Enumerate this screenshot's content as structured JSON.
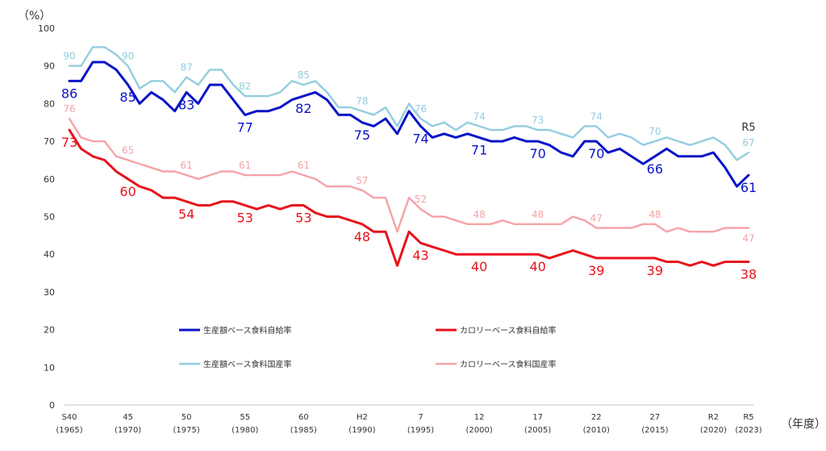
{
  "chart_data": {
    "type": "line",
    "title": "",
    "ylabel": "（%）",
    "xlabel": "（年度）",
    "ylim": [
      0,
      100
    ],
    "y_ticks": [
      0,
      10,
      20,
      30,
      40,
      50,
      60,
      70,
      80,
      90,
      100
    ],
    "grid": false,
    "legend_position": "inside-bottom-center",
    "x_range": [
      1965,
      2023
    ],
    "x_ticks": [
      {
        "year": 1965,
        "era": "S40",
        "western": "(1965)"
      },
      {
        "year": 1970,
        "era": "45",
        "western": "(1970)"
      },
      {
        "year": 1975,
        "era": "50",
        "western": "(1975)"
      },
      {
        "year": 1980,
        "era": "55",
        "western": "(1980)"
      },
      {
        "year": 1985,
        "era": "60",
        "western": "(1985)"
      },
      {
        "year": 1990,
        "era": "H2",
        "western": "(1990)"
      },
      {
        "year": 1995,
        "era": "7",
        "western": "(1995)"
      },
      {
        "year": 2000,
        "era": "12",
        "western": "(2000)"
      },
      {
        "year": 2005,
        "era": "17",
        "western": "(2005)"
      },
      {
        "year": 2010,
        "era": "22",
        "western": "(2010)"
      },
      {
        "year": 2015,
        "era": "27",
        "western": "(2015)"
      },
      {
        "year": 2020,
        "era": "R2",
        "western": "(2020)"
      },
      {
        "year": 2023,
        "era": "R5",
        "western": "(2023)"
      }
    ],
    "end_label": "R5",
    "series": [
      {
        "name": "生産額ベース食料国産率",
        "color": "#93cde0",
        "width": 2.4,
        "x": [
          1965,
          1966,
          1967,
          1968,
          1969,
          1970,
          1971,
          1972,
          1973,
          1974,
          1975,
          1976,
          1977,
          1978,
          1979,
          1980,
          1981,
          1982,
          1983,
          1984,
          1985,
          1986,
          1987,
          1988,
          1989,
          1990,
          1991,
          1992,
          1993,
          1994,
          1995,
          1996,
          1997,
          1998,
          1999,
          2000,
          2001,
          2002,
          2003,
          2004,
          2005,
          2006,
          2007,
          2008,
          2009,
          2010,
          2011,
          2012,
          2013,
          2014,
          2015,
          2016,
          2017,
          2018,
          2019,
          2020,
          2021,
          2022,
          2023
        ],
        "values": [
          90,
          90,
          95,
          95,
          93,
          90,
          84,
          86,
          86,
          83,
          87,
          85,
          89,
          89,
          85,
          82,
          82,
          82,
          83,
          86,
          85,
          86,
          83,
          79,
          79,
          78,
          77,
          79,
          74,
          80,
          76,
          74,
          75,
          73,
          75,
          74,
          73,
          73,
          74,
          74,
          73,
          73,
          72,
          71,
          74,
          74,
          71,
          72,
          71,
          69,
          70,
          71,
          70,
          69,
          70,
          71,
          69,
          65,
          67
        ],
        "labels": [
          {
            "year": 1965,
            "text": "90",
            "pos": "above"
          },
          {
            "year": 1970,
            "text": "90",
            "pos": "above"
          },
          {
            "year": 1975,
            "text": "87",
            "pos": "above"
          },
          {
            "year": 1980,
            "text": "82",
            "pos": "above"
          },
          {
            "year": 1985,
            "text": "85",
            "pos": "above"
          },
          {
            "year": 1990,
            "text": "78",
            "pos": "above"
          },
          {
            "year": 1995,
            "text": "76",
            "pos": "above"
          },
          {
            "year": 2000,
            "text": "74",
            "pos": "above"
          },
          {
            "year": 2005,
            "text": "73",
            "pos": "above"
          },
          {
            "year": 2010,
            "text": "74",
            "pos": "above"
          },
          {
            "year": 2015,
            "text": "70",
            "pos": "above"
          },
          {
            "year": 2023,
            "text": "67",
            "pos": "above"
          }
        ]
      },
      {
        "name": "生産額ベース食料自給率",
        "color": "#0a14c8",
        "width": 3,
        "x": [
          1965,
          1966,
          1967,
          1968,
          1969,
          1970,
          1971,
          1972,
          1973,
          1974,
          1975,
          1976,
          1977,
          1978,
          1979,
          1980,
          1981,
          1982,
          1983,
          1984,
          1985,
          1986,
          1987,
          1988,
          1989,
          1990,
          1991,
          1992,
          1993,
          1994,
          1995,
          1996,
          1997,
          1998,
          1999,
          2000,
          2001,
          2002,
          2003,
          2004,
          2005,
          2006,
          2007,
          2008,
          2009,
          2010,
          2011,
          2012,
          2013,
          2014,
          2015,
          2016,
          2017,
          2018,
          2019,
          2020,
          2021,
          2022,
          2023
        ],
        "values": [
          86,
          86,
          91,
          91,
          89,
          85,
          80,
          83,
          81,
          78,
          83,
          80,
          85,
          85,
          81,
          77,
          78,
          78,
          79,
          81,
          82,
          83,
          81,
          77,
          77,
          75,
          74,
          76,
          72,
          78,
          74,
          71,
          72,
          71,
          72,
          71,
          70,
          70,
          71,
          70,
          70,
          69,
          67,
          66,
          70,
          70,
          67,
          68,
          66,
          64,
          66,
          68,
          66,
          66,
          66,
          67,
          63,
          58,
          61
        ],
        "labels": [
          {
            "year": 1965,
            "text": "86",
            "pos": "below"
          },
          {
            "year": 1970,
            "text": "85",
            "pos": "below"
          },
          {
            "year": 1975,
            "text": "83",
            "pos": "below"
          },
          {
            "year": 1980,
            "text": "77",
            "pos": "below"
          },
          {
            "year": 1985,
            "text": "82",
            "pos": "below"
          },
          {
            "year": 1990,
            "text": "75",
            "pos": "below"
          },
          {
            "year": 1995,
            "text": "74",
            "pos": "below"
          },
          {
            "year": 2000,
            "text": "71",
            "pos": "below"
          },
          {
            "year": 2005,
            "text": "70",
            "pos": "below"
          },
          {
            "year": 2010,
            "text": "70",
            "pos": "below"
          },
          {
            "year": 2015,
            "text": "66",
            "pos": "below"
          },
          {
            "year": 2023,
            "text": "61",
            "pos": "below"
          }
        ]
      },
      {
        "name": "カロリーベース食料国産率",
        "color": "#f5a3a8",
        "width": 2.4,
        "x": [
          1965,
          1966,
          1967,
          1968,
          1969,
          1970,
          1971,
          1972,
          1973,
          1974,
          1975,
          1976,
          1977,
          1978,
          1979,
          1980,
          1981,
          1982,
          1983,
          1984,
          1985,
          1986,
          1987,
          1988,
          1989,
          1990,
          1991,
          1992,
          1993,
          1994,
          1995,
          1996,
          1997,
          1998,
          1999,
          2000,
          2001,
          2002,
          2003,
          2004,
          2005,
          2006,
          2007,
          2008,
          2009,
          2010,
          2011,
          2012,
          2013,
          2014,
          2015,
          2016,
          2017,
          2018,
          2019,
          2020,
          2021,
          2022,
          2023
        ],
        "values": [
          76,
          71,
          70,
          70,
          66,
          65,
          64,
          63,
          62,
          62,
          61,
          60,
          61,
          62,
          62,
          61,
          61,
          61,
          61,
          62,
          61,
          60,
          58,
          58,
          58,
          57,
          55,
          55,
          46,
          55,
          52,
          50,
          50,
          49,
          48,
          48,
          48,
          49,
          48,
          48,
          48,
          48,
          48,
          50,
          49,
          47,
          47,
          47,
          47,
          48,
          48,
          46,
          47,
          46,
          46,
          46,
          47,
          47,
          47
        ],
        "labels": [
          {
            "year": 1965,
            "text": "76",
            "pos": "above"
          },
          {
            "year": 1970,
            "text": "65",
            "pos": "above"
          },
          {
            "year": 1975,
            "text": "61",
            "pos": "above"
          },
          {
            "year": 1980,
            "text": "61",
            "pos": "above"
          },
          {
            "year": 1985,
            "text": "61",
            "pos": "above"
          },
          {
            "year": 1990,
            "text": "57",
            "pos": "above"
          },
          {
            "year": 1995,
            "text": "52",
            "pos": "above"
          },
          {
            "year": 2000,
            "text": "48",
            "pos": "above"
          },
          {
            "year": 2005,
            "text": "48",
            "pos": "above"
          },
          {
            "year": 2010,
            "text": "47",
            "pos": "above"
          },
          {
            "year": 2015,
            "text": "48",
            "pos": "above"
          },
          {
            "year": 2023,
            "text": "47",
            "pos": "below"
          }
        ]
      },
      {
        "name": "カロリーベース食料自給率",
        "color": "#e8131b",
        "width": 3,
        "x": [
          1965,
          1966,
          1967,
          1968,
          1969,
          1970,
          1971,
          1972,
          1973,
          1974,
          1975,
          1976,
          1977,
          1978,
          1979,
          1980,
          1981,
          1982,
          1983,
          1984,
          1985,
          1986,
          1987,
          1988,
          1989,
          1990,
          1991,
          1992,
          1993,
          1994,
          1995,
          1996,
          1997,
          1998,
          1999,
          2000,
          2001,
          2002,
          2003,
          2004,
          2005,
          2006,
          2007,
          2008,
          2009,
          2010,
          2011,
          2012,
          2013,
          2014,
          2015,
          2016,
          2017,
          2018,
          2019,
          2020,
          2021,
          2022,
          2023
        ],
        "values": [
          73,
          68,
          66,
          65,
          62,
          60,
          58,
          57,
          55,
          55,
          54,
          53,
          53,
          54,
          54,
          53,
          52,
          53,
          52,
          53,
          53,
          51,
          50,
          50,
          49,
          48,
          46,
          46,
          37,
          46,
          43,
          42,
          41,
          40,
          40,
          40,
          40,
          40,
          40,
          40,
          40,
          39,
          40,
          41,
          40,
          39,
          39,
          39,
          39,
          39,
          39,
          38,
          38,
          37,
          38,
          37,
          38,
          38,
          38
        ],
        "labels": [
          {
            "year": 1965,
            "text": "73",
            "pos": "below"
          },
          {
            "year": 1970,
            "text": "60",
            "pos": "below"
          },
          {
            "year": 1975,
            "text": "54",
            "pos": "below"
          },
          {
            "year": 1980,
            "text": "53",
            "pos": "below"
          },
          {
            "year": 1985,
            "text": "53",
            "pos": "below"
          },
          {
            "year": 1990,
            "text": "48",
            "pos": "below"
          },
          {
            "year": 1995,
            "text": "43",
            "pos": "below"
          },
          {
            "year": 2000,
            "text": "40",
            "pos": "below"
          },
          {
            "year": 2005,
            "text": "40",
            "pos": "below"
          },
          {
            "year": 2010,
            "text": "39",
            "pos": "below"
          },
          {
            "year": 2015,
            "text": "39",
            "pos": "below"
          },
          {
            "year": 2023,
            "text": "38",
            "pos": "below"
          }
        ]
      }
    ],
    "legend": [
      {
        "series": "生産額ベース食料自給率",
        "color": "#0a14c8"
      },
      {
        "series": "カロリーベース食料自給率",
        "color": "#e8131b"
      },
      {
        "series": "生産額ベース食料国産率",
        "color": "#93cde0"
      },
      {
        "series": "カロリーベース食料国産率",
        "color": "#f5a3a8"
      }
    ]
  }
}
